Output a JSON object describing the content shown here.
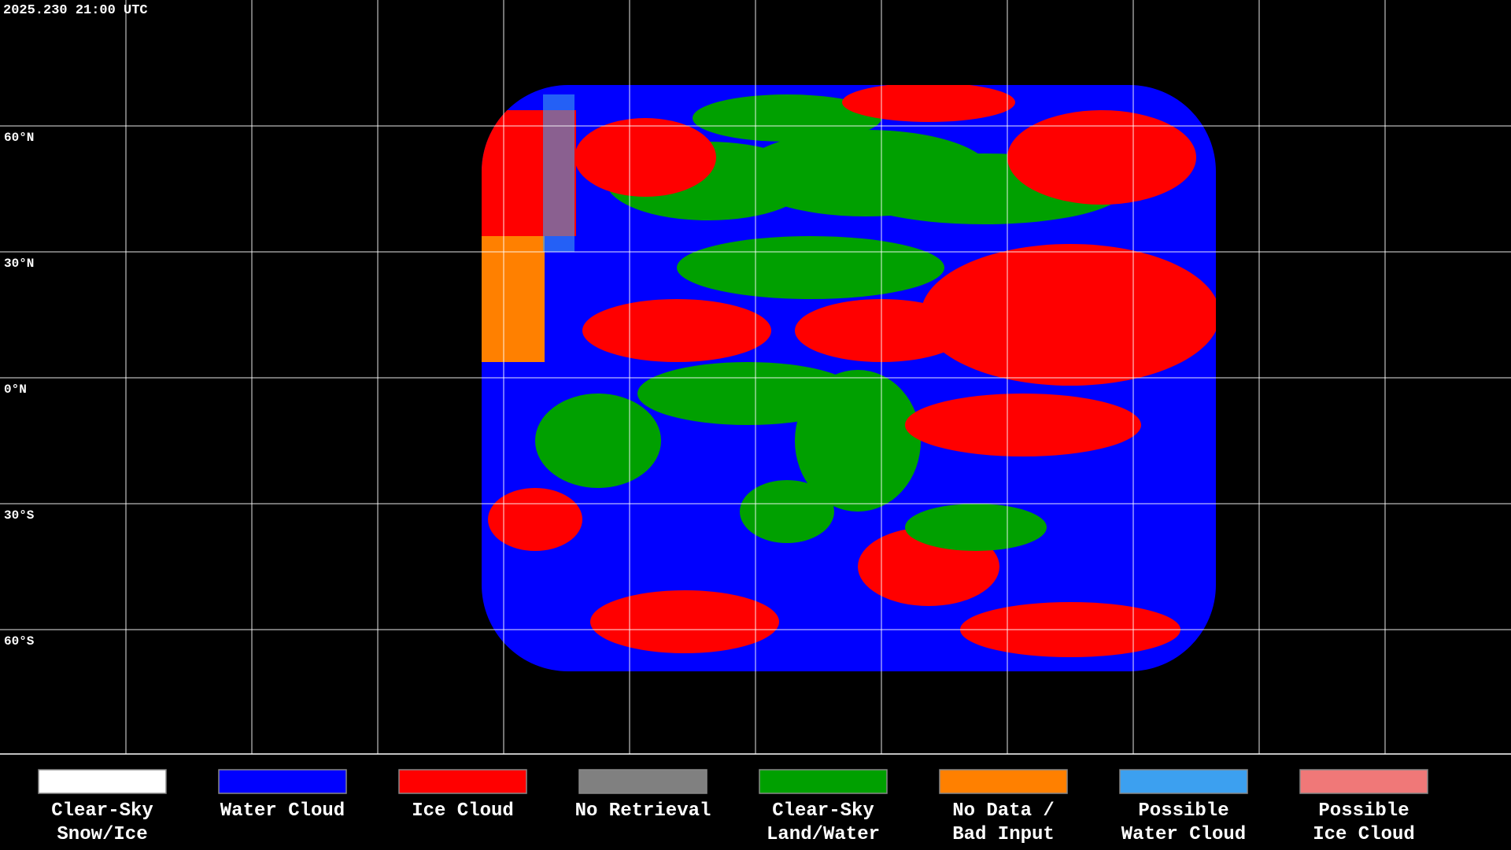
{
  "timestamp": "2025.230 21:00 UTC",
  "latitude_labels": [
    "60°N",
    "30°N",
    "0°N",
    "30°S",
    "60°S"
  ],
  "legend": [
    {
      "lines": [
        "Clear-Sky",
        "Snow/Ice"
      ],
      "color": "#ffffff"
    },
    {
      "lines": [
        "Water Cloud"
      ],
      "color": "#0000ff"
    },
    {
      "lines": [
        "Ice Cloud"
      ],
      "color": "#ff0000"
    },
    {
      "lines": [
        "No Retrieval"
      ],
      "color": "#808080"
    },
    {
      "lines": [
        "Clear-Sky",
        "Land/Water"
      ],
      "color": "#00a000"
    },
    {
      "lines": [
        "No Data /",
        "Bad Input"
      ],
      "color": "#ff8000"
    },
    {
      "lines": [
        "Possible",
        "Water Cloud"
      ],
      "color": "#3ca0f0"
    },
    {
      "lines": [
        "Possible",
        "Ice Cloud"
      ],
      "color": "#f07878"
    }
  ]
}
